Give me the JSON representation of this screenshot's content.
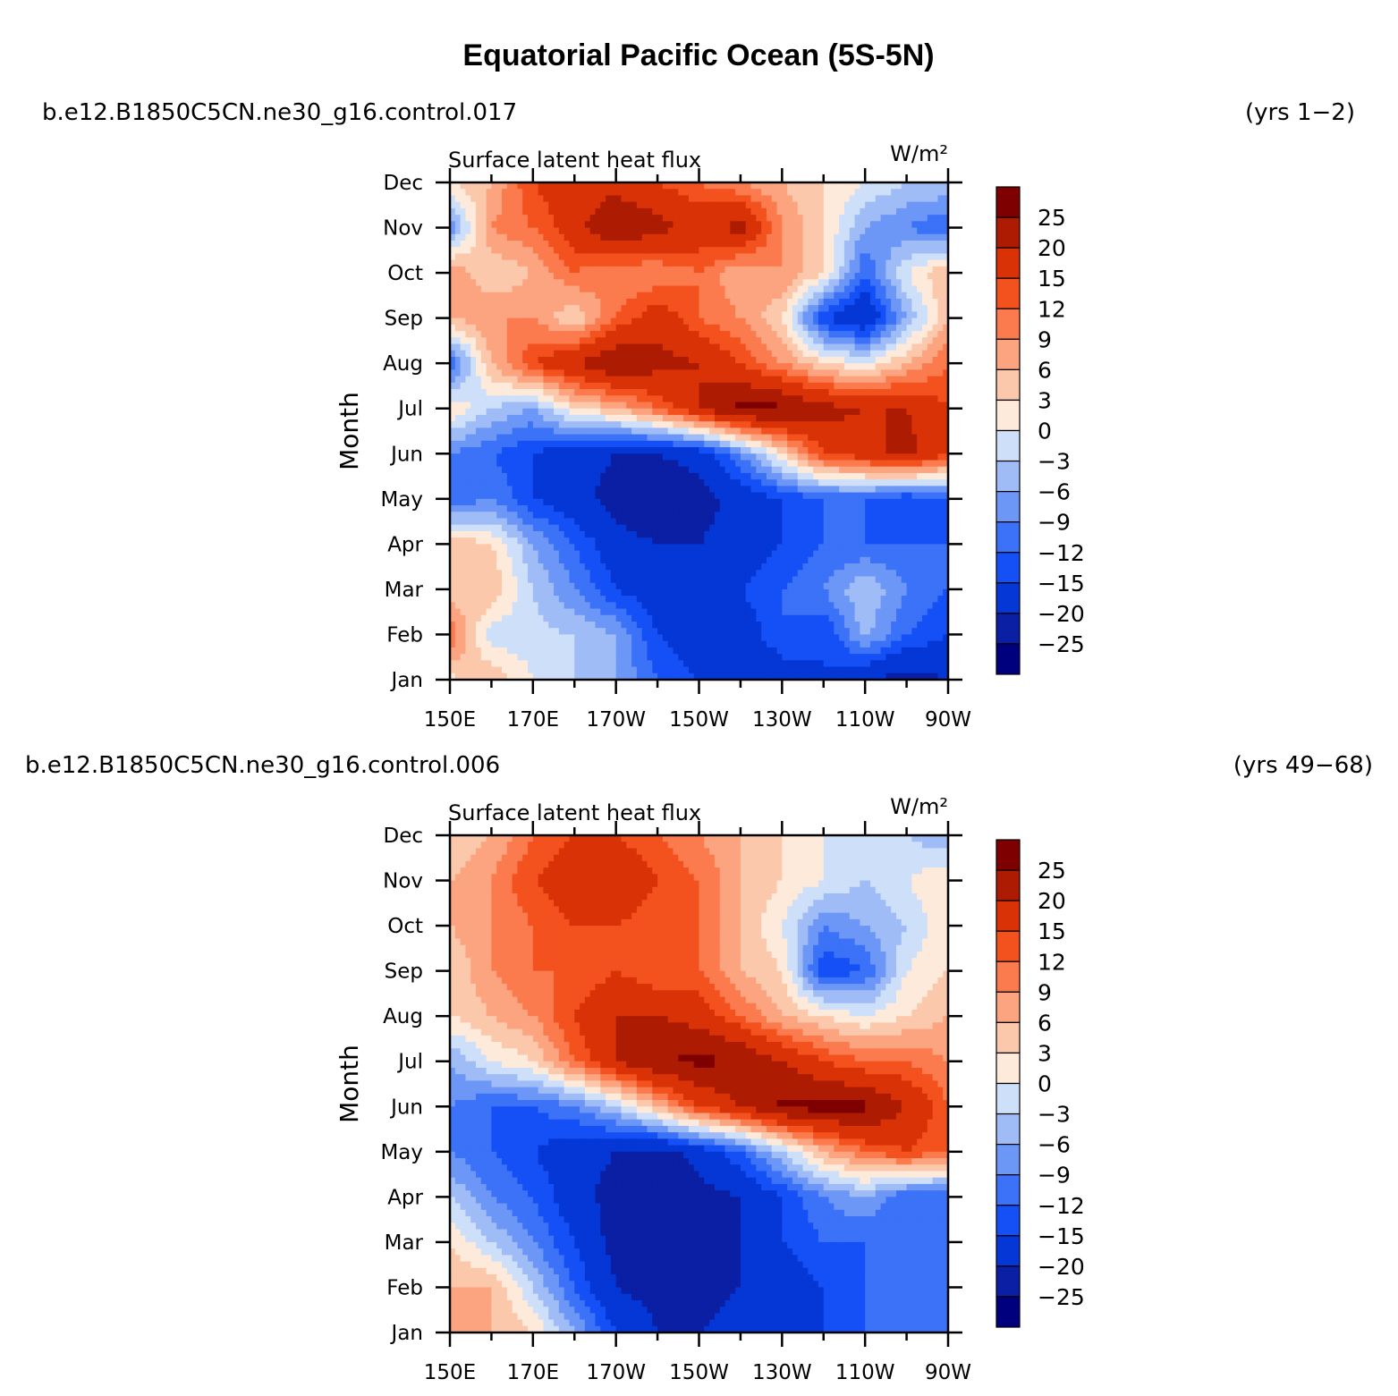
{
  "title": "Equatorial Pacific Ocean (5S-5N)",
  "colors": [
    "#00007f",
    "#0a1fa3",
    "#0437d6",
    "#1450f5",
    "#3b72f7",
    "#6d97f7",
    "#9fbcf7",
    "#cddff9",
    "#fdeadb",
    "#fcc8ac",
    "#fca47f",
    "#fb7a4e",
    "#f3511e",
    "#d93207",
    "#ad1c02",
    "#7f0000"
  ],
  "chart_data": [
    {
      "type": "heatmap",
      "case": "b.e12.B1850C5CN.ne30_g16.control.017",
      "years": "(yrs 1−2)",
      "variable": "Surface latent heat flux",
      "units": "W/m²",
      "ylabel": "Month",
      "xlabel": "",
      "x_ticks": [
        "150E",
        "170E",
        "170W",
        "150W",
        "130W",
        "110W",
        "90W"
      ],
      "y_ticks": [
        "Jan",
        "Feb",
        "Mar",
        "Apr",
        "May",
        "Jun",
        "Jul",
        "Aug",
        "Sep",
        "Oct",
        "Nov",
        "Dec"
      ],
      "xlim": [
        "150E",
        "90W"
      ],
      "levels": [
        "25",
        "20",
        "15",
        "12",
        "9",
        "6",
        "3",
        "0",
        "−3",
        "−6",
        "−9",
        "−12",
        "−15",
        "−20",
        "−25"
      ],
      "x": [
        150,
        160,
        170,
        180,
        190,
        200,
        210,
        220,
        230,
        240,
        250,
        260,
        270
      ],
      "months": [
        "Jan",
        "Feb",
        "Mar",
        "Apr",
        "May",
        "Jun",
        "Jul",
        "Aug",
        "Sep",
        "Oct",
        "Nov",
        "Dec"
      ],
      "z": [
        [
          2,
          6,
          0,
          -3,
          -6,
          -12,
          -15,
          -20,
          -18,
          -15,
          -20,
          -22,
          -20
        ],
        [
          12,
          -2,
          -2,
          -3,
          -6,
          -15,
          -18,
          -18,
          -12,
          -15,
          -5,
          -12,
          -15
        ],
        [
          3,
          6,
          -3,
          -9,
          -15,
          -18,
          -18,
          -15,
          -12,
          -9,
          -3,
          -9,
          -12
        ],
        [
          6,
          3,
          -6,
          -12,
          -18,
          -20,
          -20,
          -18,
          -15,
          -12,
          -12,
          -12,
          -12
        ],
        [
          -12,
          -9,
          -15,
          -18,
          -22,
          -25,
          -22,
          -18,
          -15,
          -12,
          -12,
          -15,
          -12
        ],
        [
          -9,
          -12,
          -15,
          -18,
          -20,
          -20,
          -18,
          -9,
          3,
          15,
          18,
          22,
          15
        ],
        [
          3,
          -3,
          -6,
          3,
          6,
          12,
          20,
          27,
          26,
          22,
          20,
          20,
          15
        ],
        [
          -12,
          6,
          15,
          20,
          25,
          22,
          20,
          15,
          9,
          3,
          0,
          6,
          12
        ],
        [
          6,
          9,
          9,
          3,
          12,
          18,
          12,
          9,
          3,
          -15,
          -20,
          -6,
          6
        ],
        [
          9,
          3,
          6,
          12,
          9,
          9,
          12,
          6,
          9,
          3,
          -12,
          0,
          6
        ],
        [
          -9,
          9,
          12,
          18,
          25,
          22,
          18,
          22,
          9,
          3,
          -6,
          -9,
          -12
        ],
        [
          3,
          6,
          15,
          18,
          18,
          15,
          12,
          9,
          6,
          3,
          0,
          -3,
          -3
        ]
      ]
    },
    {
      "type": "heatmap",
      "case": "b.e12.B1850C5CN.ne30_g16.control.006",
      "years": "(yrs 49−68)",
      "variable": "Surface latent heat flux",
      "units": "W/m²",
      "ylabel": "Month",
      "xlabel": "",
      "x_ticks": [
        "150E",
        "170E",
        "170W",
        "150W",
        "130W",
        "110W",
        "90W"
      ],
      "y_ticks": [
        "Jan",
        "Feb",
        "Mar",
        "Apr",
        "May",
        "Jun",
        "Jul",
        "Aug",
        "Sep",
        "Oct",
        "Nov",
        "Dec"
      ],
      "xlim": [
        "150E",
        "90W"
      ],
      "levels": [
        "25",
        "20",
        "15",
        "12",
        "9",
        "6",
        "3",
        "0",
        "−3",
        "−6",
        "−9",
        "−12",
        "−15",
        "−20",
        "−25"
      ],
      "x": [
        150,
        160,
        170,
        180,
        190,
        200,
        210,
        220,
        230,
        240,
        250,
        260,
        270
      ],
      "months": [
        "Jan",
        "Feb",
        "Mar",
        "Apr",
        "May",
        "Jun",
        "Jul",
        "Aug",
        "Sep",
        "Oct",
        "Nov",
        "Dec"
      ],
      "z": [
        [
          6,
          6,
          3,
          -6,
          -15,
          -20,
          -20,
          -18,
          -15,
          -15,
          -12,
          -12,
          -12
        ],
        [
          6,
          6,
          -3,
          -12,
          -20,
          -22,
          -22,
          -20,
          -18,
          -15,
          -12,
          -12,
          -12
        ],
        [
          3,
          -3,
          -9,
          -15,
          -22,
          -25,
          -22,
          -20,
          -15,
          -12,
          -12,
          -12,
          -12
        ],
        [
          -3,
          -9,
          -12,
          -18,
          -22,
          -25,
          -22,
          -20,
          -15,
          -9,
          -6,
          -12,
          -12
        ],
        [
          -9,
          -12,
          -15,
          -18,
          -20,
          -22,
          -18,
          -12,
          -3,
          6,
          12,
          15,
          12
        ],
        [
          -9,
          -12,
          -12,
          -9,
          -3,
          6,
          15,
          20,
          26,
          27,
          26,
          20,
          12
        ],
        [
          -6,
          0,
          3,
          12,
          20,
          25,
          26,
          25,
          20,
          15,
          12,
          12,
          9
        ],
        [
          3,
          6,
          9,
          15,
          20,
          20,
          18,
          12,
          6,
          3,
          0,
          3,
          6
        ],
        [
          3,
          9,
          12,
          12,
          15,
          12,
          12,
          6,
          3,
          -15,
          -12,
          0,
          3
        ],
        [
          6,
          9,
          12,
          15,
          15,
          12,
          12,
          6,
          0,
          -9,
          -6,
          -3,
          3
        ],
        [
          6,
          9,
          15,
          18,
          20,
          15,
          12,
          6,
          3,
          0,
          -3,
          0,
          3
        ],
        [
          3,
          6,
          12,
          15,
          15,
          12,
          9,
          6,
          3,
          0,
          -3,
          -3,
          -6
        ]
      ]
    }
  ]
}
